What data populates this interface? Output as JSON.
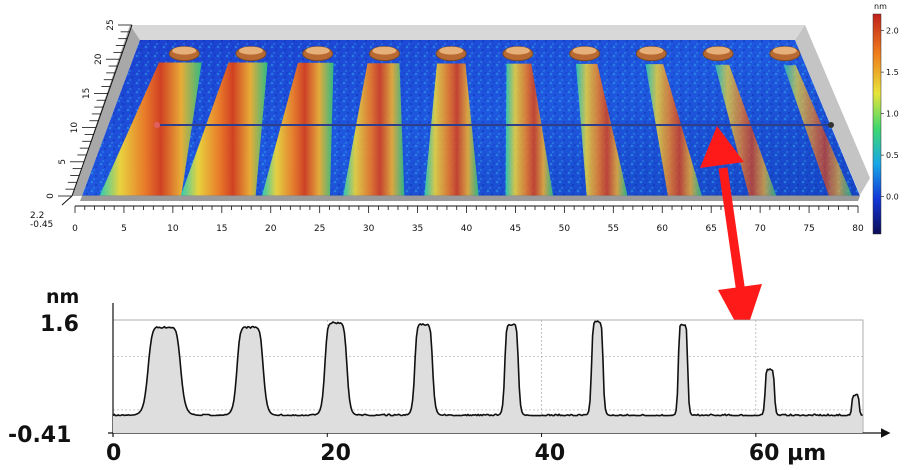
{
  "chart_data": [
    {
      "type": "surface",
      "x_ticks": [
        "0",
        "5",
        "10",
        "15",
        "20",
        "25",
        "30",
        "35",
        "40",
        "45",
        "50",
        "55",
        "60",
        "65",
        "70",
        "75",
        "80"
      ],
      "y_ticks": [
        "0",
        "5",
        "10",
        "15",
        "20",
        "25"
      ],
      "z_ticks": [
        "2.2",
        "-0.45"
      ],
      "xlim": [
        0,
        80
      ],
      "ylim": [
        0,
        25
      ],
      "zlim": [
        -0.45,
        2.2
      ],
      "stripe_x": [
        6,
        14,
        22,
        30,
        38,
        46,
        54,
        62,
        70,
        78
      ],
      "stripe_heights": [
        2.0,
        2.0,
        1.9,
        1.7,
        1.6,
        1.5,
        1.4,
        1.3,
        1.0,
        0.8
      ],
      "colorbar": {
        "unit": "nm",
        "ticks": [
          "2.0",
          "1.5",
          "1.0",
          "0.5",
          "0.0"
        ],
        "tick_values": [
          2.0,
          1.5,
          1.0,
          0.5,
          0.0
        ],
        "range": [
          -0.45,
          2.2
        ],
        "colors": [
          "#0c0d55",
          "#1236d8",
          "#17a8e6",
          "#3fd86e",
          "#e8e43a",
          "#f07d1c",
          "#c0211b"
        ]
      }
    },
    {
      "type": "line",
      "ylabel": "nm",
      "y_tick_labels": [
        "1.6",
        "-0.41"
      ],
      "ylim": [
        -0.41,
        1.6
      ],
      "xlim": [
        0,
        70
      ],
      "x_ticks": [
        0,
        20,
        40,
        60
      ],
      "x_tick_labels": [
        "0",
        "20",
        "40",
        "60 µm"
      ],
      "baseline": -0.1,
      "peaks": [
        {
          "center": 4.8,
          "height": 1.47,
          "halfwidth": 1.55
        },
        {
          "center": 12.8,
          "height": 1.47,
          "halfwidth": 1.25
        },
        {
          "center": 20.8,
          "height": 1.55,
          "halfwidth": 1.05
        },
        {
          "center": 29.0,
          "height": 1.52,
          "halfwidth": 0.85
        },
        {
          "center": 37.2,
          "height": 1.52,
          "halfwidth": 0.65
        },
        {
          "center": 45.2,
          "height": 1.57,
          "halfwidth": 0.55
        },
        {
          "center": 53.2,
          "height": 1.52,
          "halfwidth": 0.45
        },
        {
          "center": 61.3,
          "height": 0.72,
          "halfwidth": 0.45
        },
        {
          "center": 69.3,
          "height": 0.27,
          "halfwidth": 0.35
        }
      ]
    }
  ]
}
